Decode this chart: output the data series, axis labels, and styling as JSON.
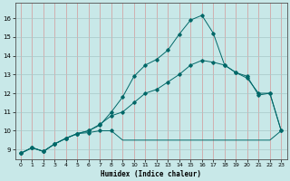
{
  "xlabel": "Humidex (Indice chaleur)",
  "bg_color": "#c8e8e8",
  "vgrid_color": "#d49898",
  "hgrid_color": "#a8c8c8",
  "line_color": "#006868",
  "xlim": [
    -0.5,
    23.5
  ],
  "ylim": [
    8.5,
    16.8
  ],
  "xticks": [
    0,
    1,
    2,
    3,
    4,
    5,
    6,
    7,
    8,
    9,
    10,
    11,
    12,
    13,
    14,
    15,
    16,
    17,
    18,
    19,
    20,
    21,
    22,
    23
  ],
  "yticks": [
    9,
    10,
    11,
    12,
    13,
    14,
    15,
    16
  ],
  "line1_x": [
    0,
    1,
    2,
    3,
    4,
    5,
    6,
    7,
    8,
    9,
    10,
    11,
    12,
    13,
    14,
    15,
    16,
    17,
    18,
    19,
    20,
    21,
    22,
    23
  ],
  "line1_y": [
    8.8,
    9.1,
    8.9,
    9.3,
    9.6,
    9.85,
    9.9,
    10.0,
    10.0,
    9.5,
    9.5,
    9.5,
    9.5,
    9.5,
    9.5,
    9.5,
    9.5,
    9.5,
    9.5,
    9.5,
    9.5,
    9.5,
    9.5,
    10.0
  ],
  "line2_x": [
    0,
    1,
    2,
    3,
    4,
    5,
    6,
    7,
    8,
    9,
    10,
    11,
    12,
    13,
    14,
    15,
    16,
    17,
    18,
    19,
    20,
    21,
    22,
    23
  ],
  "line2_y": [
    8.8,
    9.1,
    8.9,
    9.3,
    9.6,
    9.85,
    10.0,
    10.3,
    11.0,
    11.8,
    12.9,
    13.5,
    13.8,
    14.3,
    15.15,
    15.9,
    16.15,
    15.2,
    13.5,
    13.1,
    12.9,
    11.9,
    12.0,
    10.0
  ],
  "line3_x": [
    0,
    1,
    2,
    3,
    4,
    5,
    6,
    7,
    8,
    9,
    10,
    11,
    12,
    13,
    14,
    15,
    16,
    17,
    18,
    19,
    20,
    21,
    22,
    23
  ],
  "line3_y": [
    8.8,
    9.1,
    8.9,
    9.3,
    9.6,
    9.85,
    10.0,
    10.35,
    10.8,
    11.0,
    11.5,
    12.0,
    12.2,
    12.6,
    13.0,
    13.5,
    13.75,
    13.65,
    13.5,
    13.1,
    12.8,
    12.0,
    12.0,
    10.0
  ]
}
